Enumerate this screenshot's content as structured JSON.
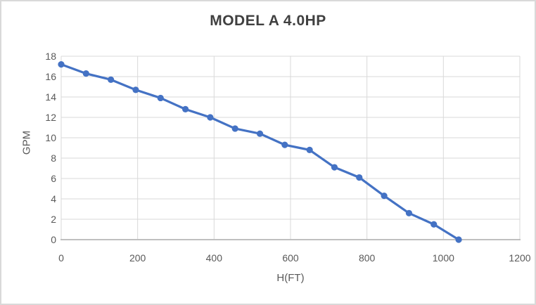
{
  "chart_data": {
    "type": "line",
    "title": "MODEL A 4.0HP",
    "xlabel": "H(FT)",
    "ylabel": "GPM",
    "series": [
      {
        "name": "MODEL A 4.0HP",
        "x": [
          0,
          65,
          130,
          195,
          260,
          325,
          390,
          455,
          520,
          585,
          650,
          715,
          780,
          845,
          910,
          975,
          1040
        ],
        "y": [
          17.2,
          16.3,
          15.7,
          14.7,
          13.9,
          12.8,
          12.0,
          10.9,
          10.4,
          9.3,
          8.8,
          7.1,
          6.1,
          4.3,
          2.6,
          1.5,
          0.0
        ]
      }
    ],
    "xlim": [
      0,
      1200
    ],
    "ylim": [
      0,
      18
    ],
    "xticks": [
      0,
      200,
      400,
      600,
      800,
      1000,
      1200
    ],
    "yticks": [
      0,
      2,
      4,
      6,
      8,
      10,
      12,
      14,
      16,
      18
    ],
    "grid": true,
    "legend": false,
    "marker": "circle",
    "colors": {
      "series": "#4472C4",
      "gridline": "#D9D9D9",
      "axis_line": "#BFBFBF",
      "tick_label": "#595959",
      "axis_title": "#595959",
      "title": "#404040",
      "background": "#FFFFFF",
      "border": "#D9D9D9"
    }
  }
}
